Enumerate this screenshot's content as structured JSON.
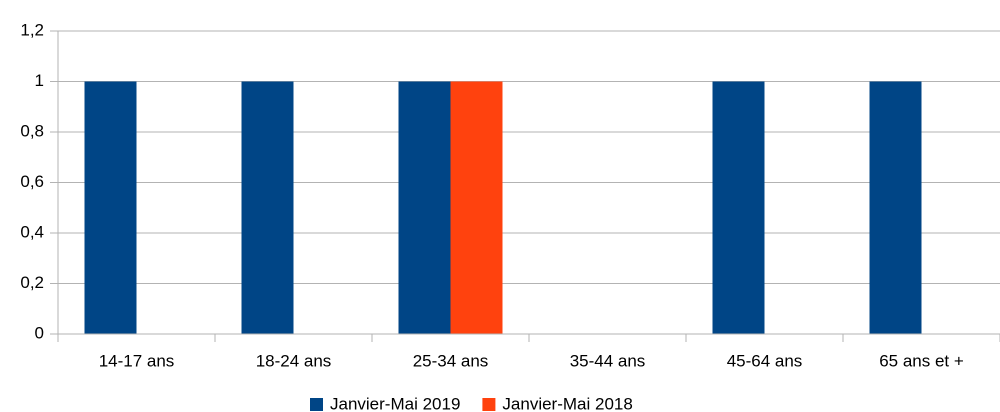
{
  "chart_data": {
    "type": "bar",
    "categories": [
      "14-17 ans",
      "18-24 ans",
      "25-34 ans",
      "35-44 ans",
      "45-64 ans",
      "65 ans et +"
    ],
    "series": [
      {
        "name": "Janvier-Mai 2019",
        "color": "#004586",
        "values": [
          1,
          1,
          1,
          0,
          1,
          1
        ]
      },
      {
        "name": "Janvier-Mai 2018",
        "color": "#ff420e",
        "values": [
          0,
          0,
          1,
          0,
          0,
          0
        ]
      }
    ],
    "ylim": [
      0,
      1.2
    ],
    "yticks": [
      0,
      {
        "value": 0.2,
        "label": "0,2"
      },
      {
        "value": 0.4,
        "label": "0,4"
      },
      {
        "value": 0.6,
        "label": "0,6"
      },
      {
        "value": 0.8,
        "label": "0,8"
      },
      1,
      {
        "value": 1.2,
        "label": "1,2"
      }
    ],
    "grid": true,
    "legend": "bottom"
  }
}
